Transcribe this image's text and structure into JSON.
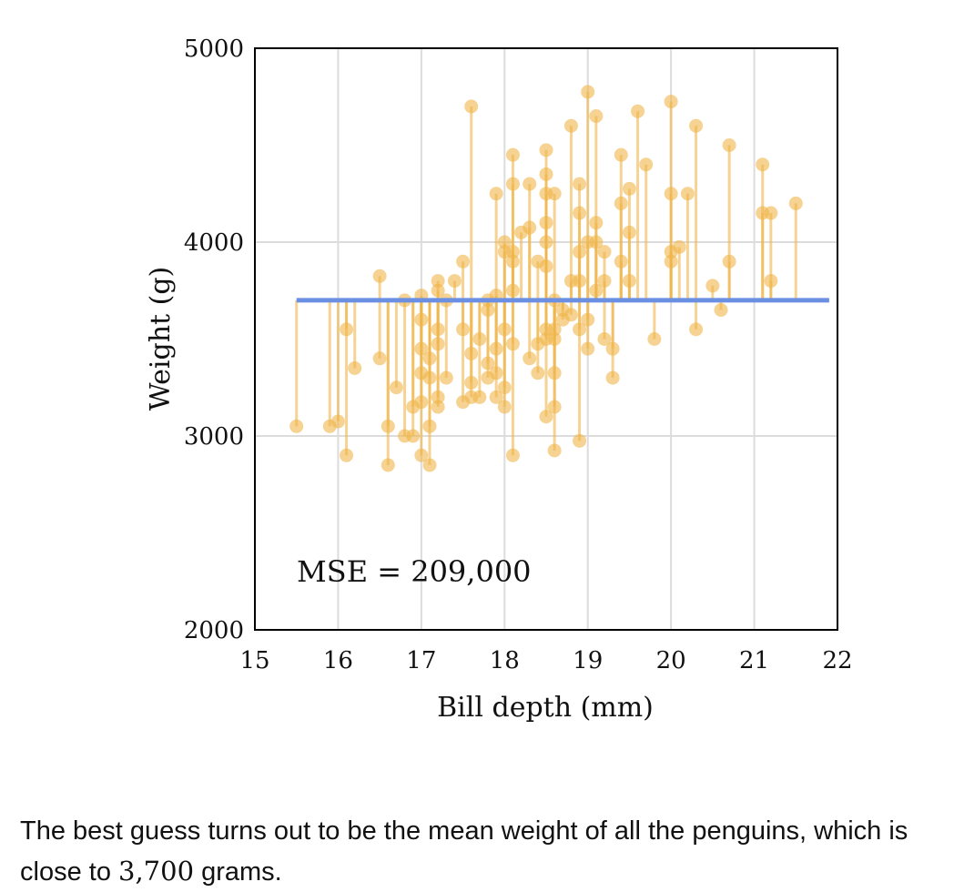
{
  "chart_data": {
    "type": "scatter",
    "xlabel": "Bill depth (mm)",
    "ylabel": "Weight (g)",
    "xlim": [
      15,
      22
    ],
    "ylim": [
      2000,
      5000
    ],
    "x_ticks": [
      "15",
      "16",
      "17",
      "18",
      "19",
      "20",
      "21",
      "22"
    ],
    "y_ticks": [
      "2000",
      "3000",
      "4000",
      "5000"
    ],
    "grid": true,
    "prediction_line": {
      "value": 3700,
      "x_range": [
        15.5,
        21.9
      ],
      "color": "#6b8fe3"
    },
    "point_color": "#f0b54a",
    "annotation": "MSE = 209,000",
    "points": [
      [
        15.5,
        3050
      ],
      [
        15.9,
        3050
      ],
      [
        16.0,
        3075
      ],
      [
        16.1,
        3550
      ],
      [
        16.1,
        2900
      ],
      [
        16.2,
        3350
      ],
      [
        16.5,
        3825
      ],
      [
        16.5,
        3400
      ],
      [
        16.6,
        3050
      ],
      [
        16.6,
        2850
      ],
      [
        16.7,
        3250
      ],
      [
        16.8,
        3700
      ],
      [
        16.8,
        3000
      ],
      [
        16.9,
        3150
      ],
      [
        16.9,
        3000
      ],
      [
        17.0,
        3725
      ],
      [
        17.0,
        3600
      ],
      [
        17.0,
        3450
      ],
      [
        17.0,
        3325
      ],
      [
        17.0,
        3175
      ],
      [
        17.0,
        2900
      ],
      [
        17.1,
        3400
      ],
      [
        17.1,
        3300
      ],
      [
        17.1,
        3050
      ],
      [
        17.1,
        2850
      ],
      [
        17.2,
        3800
      ],
      [
        17.2,
        3750
      ],
      [
        17.2,
        3550
      ],
      [
        17.2,
        3475
      ],
      [
        17.2,
        3200
      ],
      [
        17.2,
        3150
      ],
      [
        17.3,
        3700
      ],
      [
        17.3,
        3300
      ],
      [
        17.4,
        3800
      ],
      [
        17.5,
        3900
      ],
      [
        17.5,
        3550
      ],
      [
        17.5,
        3175
      ],
      [
        17.6,
        4700
      ],
      [
        17.6,
        3425
      ],
      [
        17.6,
        3275
      ],
      [
        17.6,
        3200
      ],
      [
        17.7,
        3500
      ],
      [
        17.7,
        3200
      ],
      [
        17.8,
        3700
      ],
      [
        17.8,
        3650
      ],
      [
        17.8,
        3375
      ],
      [
        17.8,
        3300
      ],
      [
        17.9,
        4250
      ],
      [
        17.9,
        3725
      ],
      [
        17.9,
        3450
      ],
      [
        17.9,
        3325
      ],
      [
        17.9,
        3200
      ],
      [
        18.0,
        4000
      ],
      [
        18.0,
        3950
      ],
      [
        18.0,
        3550
      ],
      [
        18.0,
        3250
      ],
      [
        18.0,
        3150
      ],
      [
        18.1,
        4450
      ],
      [
        18.1,
        4300
      ],
      [
        18.1,
        3950
      ],
      [
        18.1,
        3900
      ],
      [
        18.1,
        3750
      ],
      [
        18.1,
        3475
      ],
      [
        18.1,
        2900
      ],
      [
        18.2,
        4050
      ],
      [
        18.3,
        4300
      ],
      [
        18.3,
        4075
      ],
      [
        18.3,
        3400
      ],
      [
        18.4,
        3900
      ],
      [
        18.4,
        3475
      ],
      [
        18.4,
        3325
      ],
      [
        18.5,
        4475
      ],
      [
        18.5,
        4350
      ],
      [
        18.5,
        4250
      ],
      [
        18.5,
        4100
      ],
      [
        18.5,
        4000
      ],
      [
        18.5,
        3875
      ],
      [
        18.5,
        3550
      ],
      [
        18.5,
        3500
      ],
      [
        18.5,
        3100
      ],
      [
        18.6,
        4250
      ],
      [
        18.6,
        3700
      ],
      [
        18.6,
        3550
      ],
      [
        18.6,
        3500
      ],
      [
        18.6,
        3325
      ],
      [
        18.6,
        3150
      ],
      [
        18.6,
        2925
      ],
      [
        18.7,
        3650
      ],
      [
        18.7,
        3600
      ],
      [
        18.8,
        4600
      ],
      [
        18.8,
        3800
      ],
      [
        18.8,
        3625
      ],
      [
        18.9,
        4300
      ],
      [
        18.9,
        4150
      ],
      [
        18.9,
        3950
      ],
      [
        18.9,
        3800
      ],
      [
        18.9,
        3550
      ],
      [
        18.9,
        2975
      ],
      [
        19.0,
        4775
      ],
      [
        19.0,
        4000
      ],
      [
        19.0,
        3600
      ],
      [
        19.0,
        3450
      ],
      [
        19.1,
        4650
      ],
      [
        19.1,
        4100
      ],
      [
        19.1,
        4000
      ],
      [
        19.1,
        3750
      ],
      [
        19.2,
        3950
      ],
      [
        19.2,
        3800
      ],
      [
        19.2,
        3500
      ],
      [
        19.3,
        3450
      ],
      [
        19.3,
        3300
      ],
      [
        19.4,
        4450
      ],
      [
        19.4,
        4200
      ],
      [
        19.4,
        3900
      ],
      [
        19.5,
        4275
      ],
      [
        19.5,
        4050
      ],
      [
        19.5,
        3800
      ],
      [
        19.6,
        4675
      ],
      [
        19.7,
        4400
      ],
      [
        19.8,
        3500
      ],
      [
        20.0,
        4725
      ],
      [
        20.0,
        4250
      ],
      [
        20.0,
        3950
      ],
      [
        20.0,
        3900
      ],
      [
        20.1,
        3975
      ],
      [
        20.2,
        4250
      ],
      [
        20.3,
        4600
      ],
      [
        20.3,
        3550
      ],
      [
        20.5,
        3775
      ],
      [
        20.6,
        3650
      ],
      [
        20.7,
        4500
      ],
      [
        20.7,
        3900
      ],
      [
        21.1,
        4400
      ],
      [
        21.1,
        4150
      ],
      [
        21.2,
        4150
      ],
      [
        21.2,
        3800
      ],
      [
        21.5,
        4200
      ]
    ]
  },
  "caption": {
    "before": "The best guess turns out to be the mean weight of all the penguins, which is close to ",
    "number": "3,700",
    "after": " grams."
  }
}
